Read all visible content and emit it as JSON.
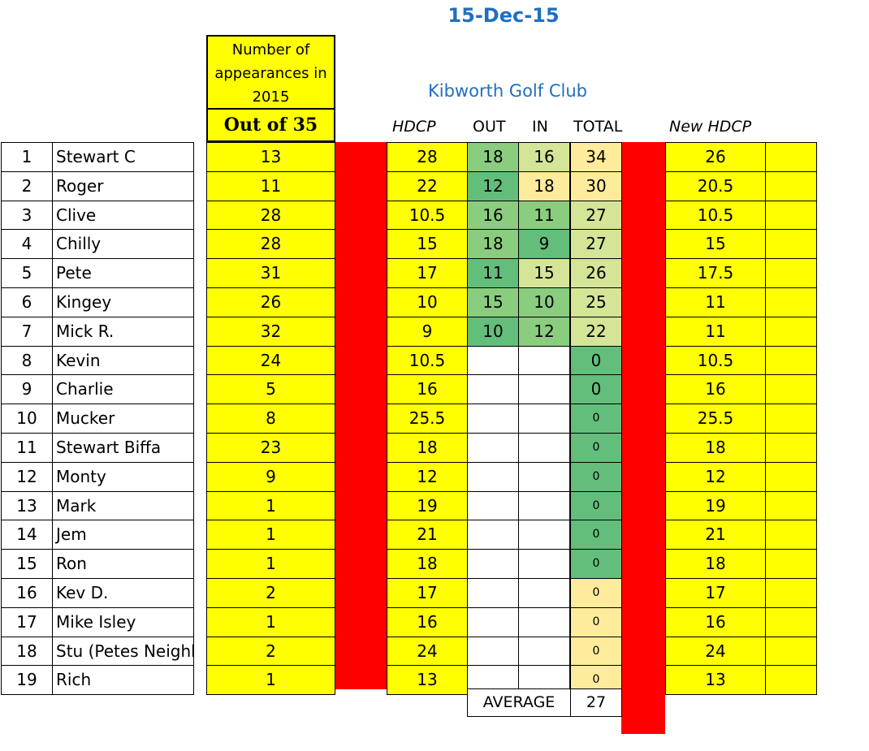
{
  "date": "15-Dec-15",
  "club": "Kibworth Golf Club",
  "appearances_header": [
    "Number of",
    "appearances in",
    "2015"
  ],
  "out_of": "Out of 35",
  "columns": {
    "hdcp": "HDCP",
    "out": "OUT",
    "in": "IN",
    "total": "TOTAL",
    "new_hdcp": "New HDCP"
  },
  "colors": {
    "yellow": "#ffff00",
    "red": "#ff0000",
    "green_dark": "#63be7b",
    "green_mid": "#8acd7f",
    "green_light": "#d4e597",
    "pale": "#ffeb9c"
  },
  "players": [
    {
      "num": "1",
      "name": "Stewart C",
      "apps": "13",
      "hdcp": "28",
      "out": "18",
      "in": "16",
      "total": "34",
      "new_hdcp": "26",
      "out_c": "#8acd7f",
      "in_c": "#d4e597",
      "total_c": "#ffeb9c"
    },
    {
      "num": "2",
      "name": "Roger",
      "apps": "11",
      "hdcp": "22",
      "out": "12",
      "in": "18",
      "total": "30",
      "new_hdcp": "20.5",
      "out_c": "#63be7b",
      "in_c": "#ffeb9c",
      "total_c": "#ffeb9c"
    },
    {
      "num": "3",
      "name": "Clive",
      "apps": "28",
      "hdcp": "10.5",
      "out": "16",
      "in": "11",
      "total": "27",
      "new_hdcp": "10.5",
      "out_c": "#8acd7f",
      "in_c": "#8acd7f",
      "total_c": "#d4e597"
    },
    {
      "num": "4",
      "name": "Chilly",
      "apps": "28",
      "hdcp": "15",
      "out": "18",
      "in": "9",
      "total": "27",
      "new_hdcp": "15",
      "out_c": "#8acd7f",
      "in_c": "#63be7b",
      "total_c": "#d4e597"
    },
    {
      "num": "5",
      "name": "Pete",
      "apps": "31",
      "hdcp": "17",
      "out": "11",
      "in": "15",
      "total": "26",
      "new_hdcp": "17.5",
      "out_c": "#63be7b",
      "in_c": "#d4e597",
      "total_c": "#d4e597"
    },
    {
      "num": "6",
      "name": "Kingey",
      "apps": "26",
      "hdcp": "10",
      "out": "15",
      "in": "10",
      "total": "25",
      "new_hdcp": "11",
      "out_c": "#8acd7f",
      "in_c": "#8acd7f",
      "total_c": "#d4e597"
    },
    {
      "num": "7",
      "name": "Mick R.",
      "apps": "32",
      "hdcp": "9",
      "out": "10",
      "in": "12",
      "total": "22",
      "new_hdcp": "11",
      "out_c": "#63be7b",
      "in_c": "#8acd7f",
      "total_c": "#d4e597"
    },
    {
      "num": "8",
      "name": "Kevin",
      "apps": "24",
      "hdcp": "10.5",
      "out": "",
      "in": "",
      "total": "0",
      "new_hdcp": "10.5",
      "out_c": "#ffffff",
      "in_c": "#ffffff",
      "total_c": "#63be7b",
      "small": false
    },
    {
      "num": "9",
      "name": "Charlie",
      "apps": "5",
      "hdcp": "16",
      "out": "",
      "in": "",
      "total": "0",
      "new_hdcp": "16",
      "out_c": "#ffffff",
      "in_c": "#ffffff",
      "total_c": "#63be7b",
      "small": false
    },
    {
      "num": "10",
      "name": "Mucker",
      "apps": "8",
      "hdcp": "25.5",
      "out": "",
      "in": "",
      "total": "0",
      "new_hdcp": "25.5",
      "out_c": "#ffffff",
      "in_c": "#ffffff",
      "total_c": "#63be7b",
      "small": true
    },
    {
      "num": "11",
      "name": "Stewart Biffa",
      "apps": "23",
      "hdcp": "18",
      "out": "",
      "in": "",
      "total": "0",
      "new_hdcp": "18",
      "out_c": "#ffffff",
      "in_c": "#ffffff",
      "total_c": "#63be7b",
      "small": true
    },
    {
      "num": "12",
      "name": "Monty",
      "apps": "9",
      "hdcp": "12",
      "out": "",
      "in": "",
      "total": "0",
      "new_hdcp": "12",
      "out_c": "#ffffff",
      "in_c": "#ffffff",
      "total_c": "#63be7b",
      "small": true
    },
    {
      "num": "13",
      "name": "Mark",
      "apps": "1",
      "hdcp": "19",
      "out": "",
      "in": "",
      "total": "0",
      "new_hdcp": "19",
      "out_c": "#ffffff",
      "in_c": "#ffffff",
      "total_c": "#63be7b",
      "small": true
    },
    {
      "num": "14",
      "name": "Jem",
      "apps": "1",
      "hdcp": "21",
      "out": "",
      "in": "",
      "total": "0",
      "new_hdcp": "21",
      "out_c": "#ffffff",
      "in_c": "#ffffff",
      "total_c": "#63be7b",
      "small": true
    },
    {
      "num": "15",
      "name": "Ron",
      "apps": "1",
      "hdcp": "18",
      "out": "",
      "in": "",
      "total": "0",
      "new_hdcp": "18",
      "out_c": "#ffffff",
      "in_c": "#ffffff",
      "total_c": "#63be7b",
      "small": true
    },
    {
      "num": "16",
      "name": "Kev D.",
      "apps": "2",
      "hdcp": "17",
      "out": "",
      "in": "",
      "total": "0",
      "new_hdcp": "17",
      "out_c": "#ffffff",
      "in_c": "#ffffff",
      "total_c": "#ffeb9c",
      "small": true
    },
    {
      "num": "17",
      "name": "Mike Isley",
      "apps": "1",
      "hdcp": "16",
      "out": "",
      "in": "",
      "total": "0",
      "new_hdcp": "16",
      "out_c": "#ffffff",
      "in_c": "#ffffff",
      "total_c": "#ffeb9c",
      "small": true
    },
    {
      "num": "18",
      "name": "Stu (Petes Neighb",
      "apps": "2",
      "hdcp": "24",
      "out": "",
      "in": "",
      "total": "0",
      "new_hdcp": "24",
      "out_c": "#ffffff",
      "in_c": "#ffffff",
      "total_c": "#ffeb9c",
      "small": true
    },
    {
      "num": "19",
      "name": "Rich",
      "apps": "1",
      "hdcp": "13",
      "out": "",
      "in": "",
      "total": "0",
      "new_hdcp": "13",
      "out_c": "#ffffff",
      "in_c": "#ffffff",
      "total_c": "#ffeb9c",
      "small": true
    }
  ],
  "average_label": "AVERAGE",
  "average_value": "27"
}
